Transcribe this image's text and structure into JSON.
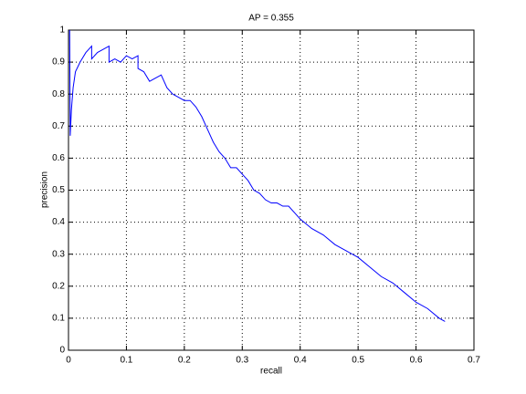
{
  "chart_data": {
    "type": "line",
    "title": "AP = 0.355",
    "x_label": "recall",
    "y_label": "precision",
    "x": [
      0.002,
      0.003,
      0.005,
      0.008,
      0.012,
      0.02,
      0.03,
      0.04,
      0.04,
      0.05,
      0.06,
      0.07,
      0.07,
      0.08,
      0.09,
      0.1,
      0.11,
      0.12,
      0.12,
      0.13,
      0.14,
      0.15,
      0.16,
      0.17,
      0.18,
      0.19,
      0.2,
      0.21,
      0.22,
      0.23,
      0.24,
      0.25,
      0.26,
      0.27,
      0.28,
      0.29,
      0.3,
      0.31,
      0.32,
      0.33,
      0.34,
      0.35,
      0.36,
      0.37,
      0.38,
      0.39,
      0.4,
      0.42,
      0.44,
      0.46,
      0.48,
      0.5,
      0.52,
      0.54,
      0.56,
      0.58,
      0.6,
      0.62,
      0.64,
      0.65
    ],
    "values": [
      1.0,
      0.67,
      0.75,
      0.82,
      0.87,
      0.9,
      0.93,
      0.95,
      0.91,
      0.93,
      0.94,
      0.95,
      0.9,
      0.91,
      0.9,
      0.92,
      0.91,
      0.92,
      0.88,
      0.87,
      0.84,
      0.85,
      0.86,
      0.82,
      0.8,
      0.79,
      0.78,
      0.78,
      0.76,
      0.73,
      0.69,
      0.65,
      0.62,
      0.6,
      0.57,
      0.57,
      0.55,
      0.53,
      0.5,
      0.49,
      0.47,
      0.46,
      0.46,
      0.45,
      0.45,
      0.43,
      0.41,
      0.38,
      0.36,
      0.33,
      0.31,
      0.29,
      0.26,
      0.23,
      0.21,
      0.18,
      0.15,
      0.13,
      0.1,
      0.09
    ],
    "color": "#0000ff",
    "xlim": [
      0,
      0.7
    ],
    "xticks": [
      0,
      0.1,
      0.2,
      0.3,
      0.4,
      0.5,
      0.6,
      0.7
    ],
    "ylim": [
      0,
      1
    ],
    "yticks": [
      0,
      0.1,
      0.2,
      0.3,
      0.4,
      0.5,
      0.6,
      0.7,
      0.8,
      0.9,
      1
    ],
    "grid": true
  }
}
